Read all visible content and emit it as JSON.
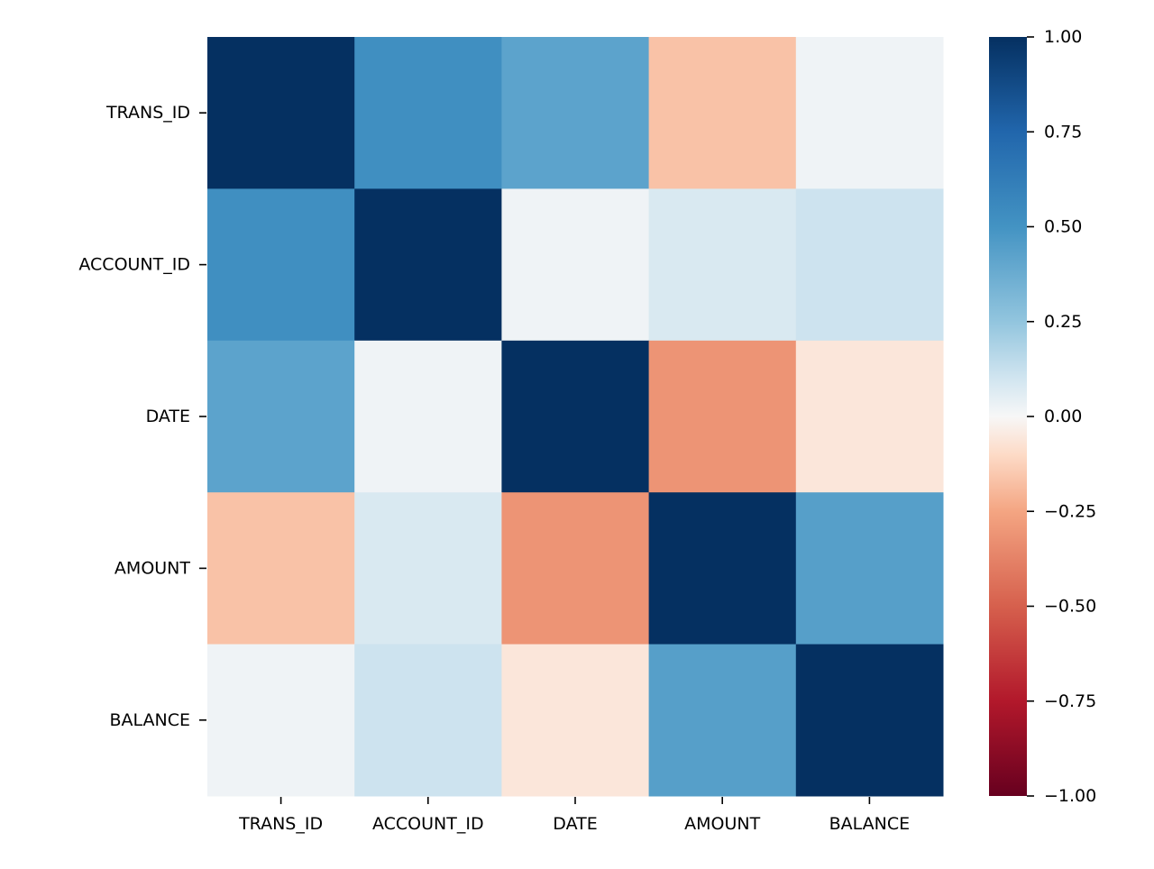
{
  "chart_data": {
    "type": "heatmap",
    "title": "",
    "xlabel": "",
    "ylabel": "",
    "rows": [
      "TRANS_ID",
      "ACCOUNT_ID",
      "DATE",
      "AMOUNT",
      "BALANCE"
    ],
    "columns": [
      "TRANS_ID",
      "ACCOUNT_ID",
      "DATE",
      "AMOUNT",
      "BALANCE"
    ],
    "values": [
      [
        1.0,
        0.52,
        0.42,
        -0.17,
        0.02
      ],
      [
        0.52,
        1.0,
        0.02,
        0.08,
        0.11
      ],
      [
        0.42,
        0.02,
        1.0,
        -0.31,
        -0.06
      ],
      [
        -0.17,
        0.08,
        -0.31,
        1.0,
        0.44
      ],
      [
        0.02,
        0.11,
        -0.06,
        0.44,
        1.0
      ]
    ],
    "colormap": "RdBu",
    "colorbar": {
      "min": -1.0,
      "max": 1.0,
      "ticks": [
        1.0,
        0.75,
        0.5,
        0.25,
        0.0,
        -0.25,
        -0.5,
        -0.75,
        -1.0
      ],
      "tick_labels": [
        "1.00",
        "0.75",
        "0.50",
        "0.25",
        "0.00",
        "−0.25",
        "−0.50",
        "−0.75",
        "−1.00"
      ]
    }
  }
}
